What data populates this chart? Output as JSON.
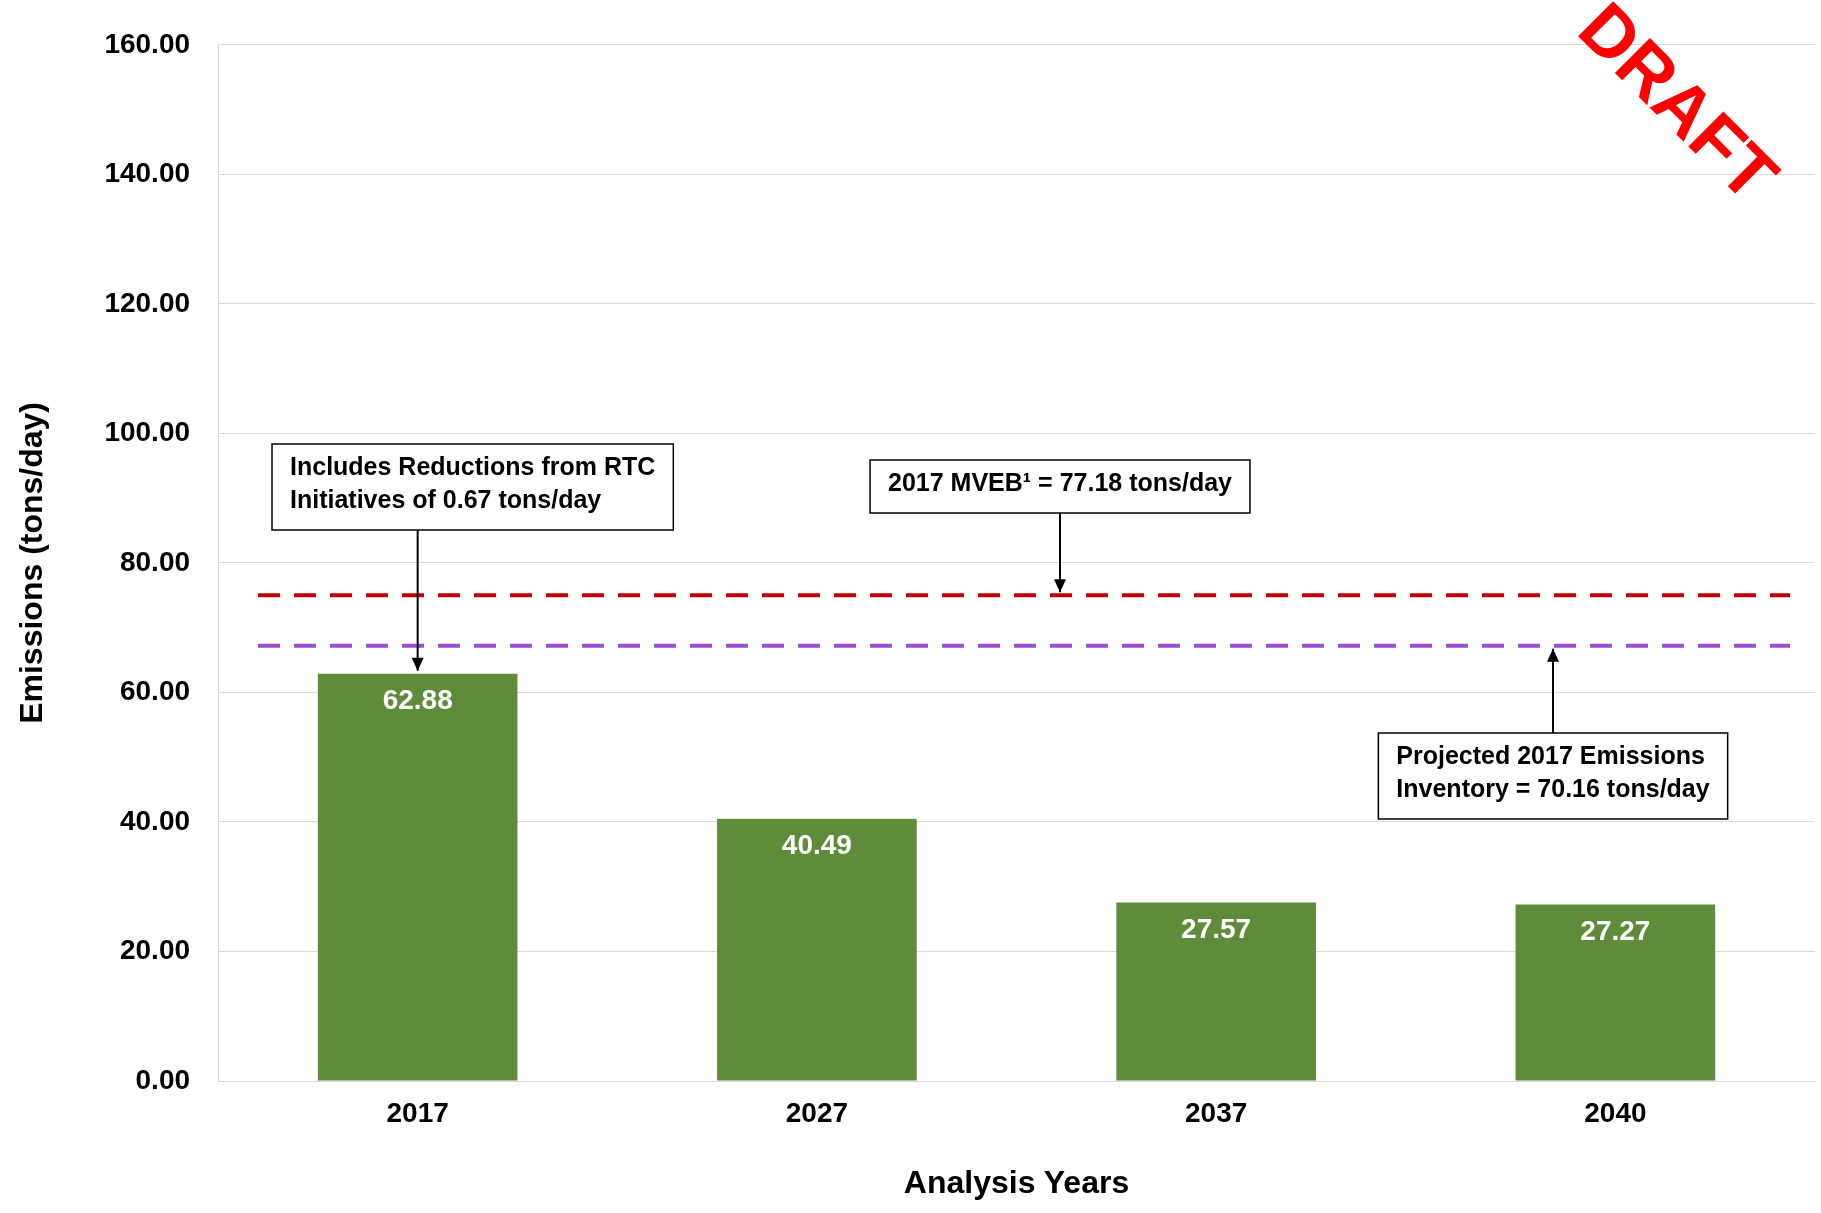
{
  "chart_data": {
    "type": "bar",
    "xlabel": "Analysis Years",
    "ylabel": "Emissions (tons/day)",
    "categories": [
      "2017",
      "2027",
      "2037",
      "2040"
    ],
    "values": [
      62.88,
      40.49,
      27.57,
      27.27
    ],
    "color": "#5e8c3a",
    "data_labels": true,
    "ylim": [
      0,
      160
    ],
    "yticks": [
      {
        "value": 0,
        "label": "0.00"
      },
      {
        "value": 20,
        "label": "20.00"
      },
      {
        "value": 40,
        "label": "40.00"
      },
      {
        "value": 60,
        "label": "60.00"
      },
      {
        "value": 80,
        "label": "80.00"
      },
      {
        "value": 100,
        "label": "100.00"
      },
      {
        "value": 120,
        "label": "120.00"
      },
      {
        "value": 140,
        "label": "140.00"
      },
      {
        "value": 160,
        "label": "160.00"
      }
    ],
    "grid": "y",
    "legend": false,
    "ref_lines": [
      {
        "axis": "y",
        "value": 75,
        "color": "#c00000",
        "line_style": "dashed"
      },
      {
        "axis": "y",
        "value": 67.2,
        "color": "#9a4fd0",
        "line_style": "dashed"
      }
    ],
    "annotations": [
      {
        "text": "Includes Reductions from RTC Initiatives of 0.67 tons/day",
        "x": "2017",
        "y": 62.88
      },
      {
        "text": "2017 MVEB¹ = 77.18 tons/day",
        "y": 75
      },
      {
        "text": "Projected 2017 Emissions Inventory = 70.16 tons/day",
        "y": 67.2
      },
      "DRAFT"
    ]
  }
}
